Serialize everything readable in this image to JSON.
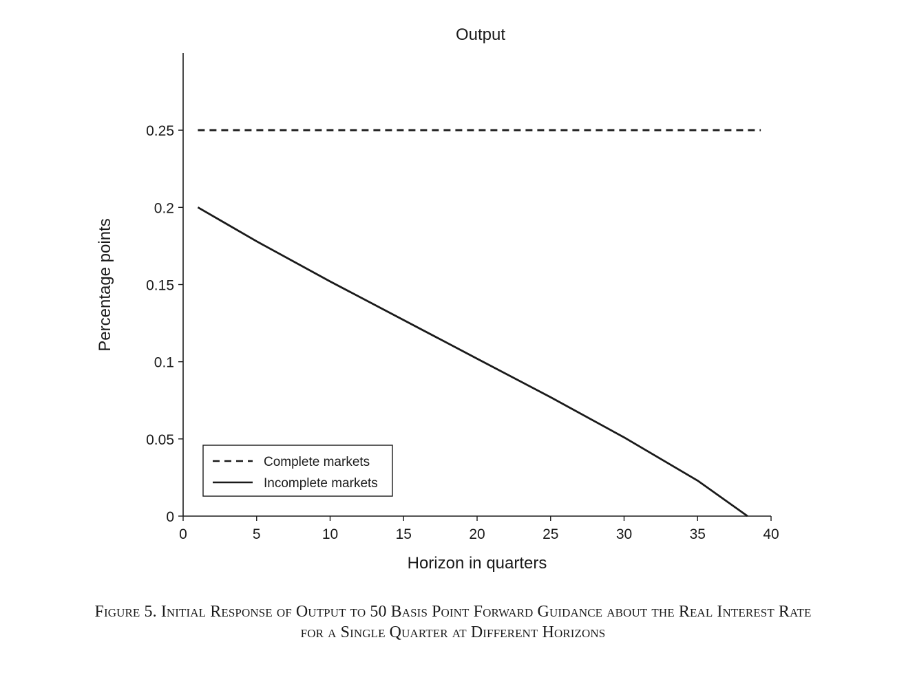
{
  "chart_data": {
    "type": "line",
    "title": "Output",
    "xlabel": "Horizon in quarters",
    "ylabel": "Percentage points",
    "xlim": [
      0,
      40
    ],
    "ylim": [
      0,
      0.3
    ],
    "xticks": [
      0,
      5,
      10,
      15,
      20,
      25,
      30,
      35,
      40
    ],
    "xtick_labels": [
      "0",
      "5",
      "10",
      "15",
      "20",
      "25",
      "30",
      "35",
      "40"
    ],
    "yticks": [
      0,
      0.05,
      0.1,
      0.15,
      0.2,
      0.25
    ],
    "ytick_labels": [
      "0",
      "0.05",
      "0.1",
      "0.15",
      "0.2",
      "0.25"
    ],
    "grid": false,
    "legend_position": "bottom-left",
    "series": [
      {
        "name": "Complete markets",
        "style": "dashed",
        "color": "#1a1a1a",
        "x": [
          1,
          39.3
        ],
        "y": [
          0.25,
          0.25
        ]
      },
      {
        "name": "Incomplete markets",
        "style": "solid",
        "color": "#1a1a1a",
        "x": [
          1,
          3,
          5,
          10,
          15,
          20,
          25,
          30,
          35,
          38.4
        ],
        "y": [
          0.2,
          0.189,
          0.178,
          0.152,
          0.127,
          0.102,
          0.077,
          0.051,
          0.023,
          0
        ]
      }
    ]
  },
  "caption": {
    "line1": "Figure 5. Initial Response of Output to 50 Basis Point Forward Guidance about the Real Interest Rate",
    "line2": "for a Single Quarter at Different Horizons"
  }
}
